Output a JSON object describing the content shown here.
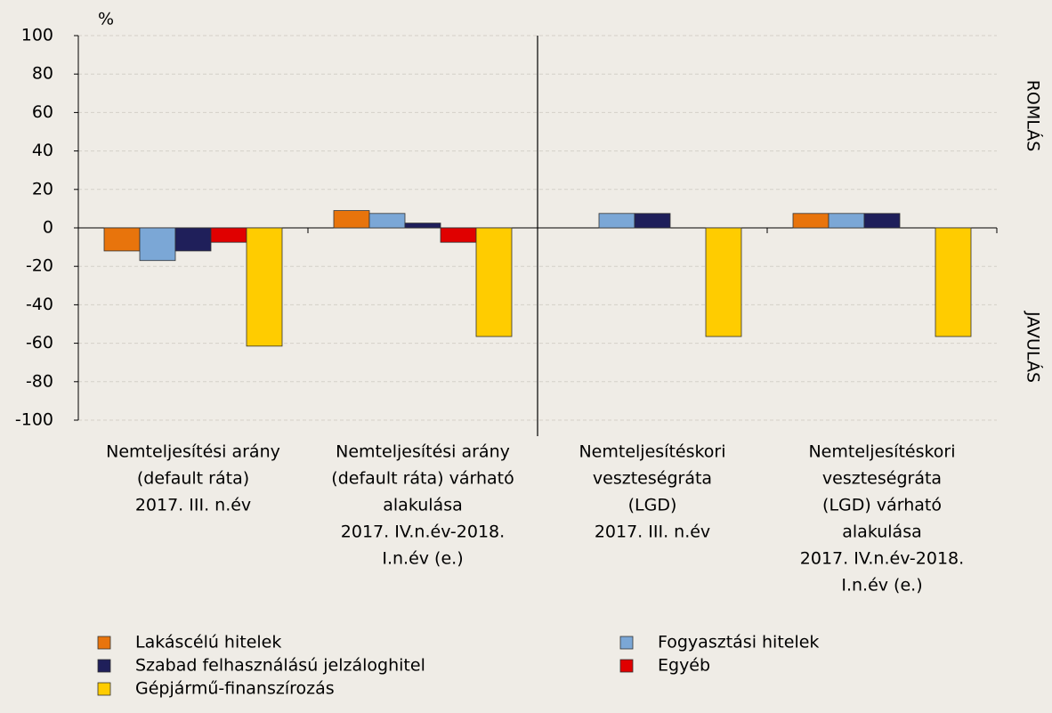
{
  "chart_data": {
    "type": "bar",
    "unit_label": "%",
    "annotations": [
      "ROMLÁS",
      "JAVULÁS"
    ],
    "categories": [
      [
        "Nemteljesítési arány",
        "(default ráta)",
        "2017. III. n.év"
      ],
      [
        "Nemteljesítési arány",
        "(default ráta) várható",
        "alakulása",
        "2017. IV.n.év-2018.",
        "I.n.év (e.)"
      ],
      [
        "Nemteljesítéskori",
        "veszteségráta",
        "(LGD)",
        "2017. III. n.év"
      ],
      [
        "Nemteljesítéskori",
        "veszteségráta",
        "(LGD) várható",
        "alakulása",
        "2017. IV.n.év-2018.",
        "I.n.év (e.)"
      ]
    ],
    "series": [
      {
        "name": "Lakáscélú hitelek",
        "color": "#e8740c",
        "values": [
          -12,
          9,
          0,
          7.5
        ]
      },
      {
        "name": "Fogyasztási hitelek",
        "color": "#7ba7d6",
        "values": [
          -17,
          7.5,
          7.5,
          7.5
        ]
      },
      {
        "name": "Szabad felhasználású jelzáloghitel",
        "color": "#1f1f5a",
        "values": [
          -12,
          2.5,
          7.5,
          7.5
        ]
      },
      {
        "name": "Egyéb",
        "color": "#e00000",
        "values": [
          -7.5,
          -7.5,
          0,
          0
        ]
      },
      {
        "name": "Gépjármű-finanszírozás",
        "color": "#ffcc00",
        "values": [
          -61.5,
          -56.5,
          -56.5,
          -56.5
        ]
      }
    ],
    "ylim": [
      -100,
      100
    ],
    "yticks": [
      -100,
      -80,
      -60,
      -40,
      -20,
      0,
      20,
      40,
      60,
      80,
      100
    ],
    "grid": true
  }
}
